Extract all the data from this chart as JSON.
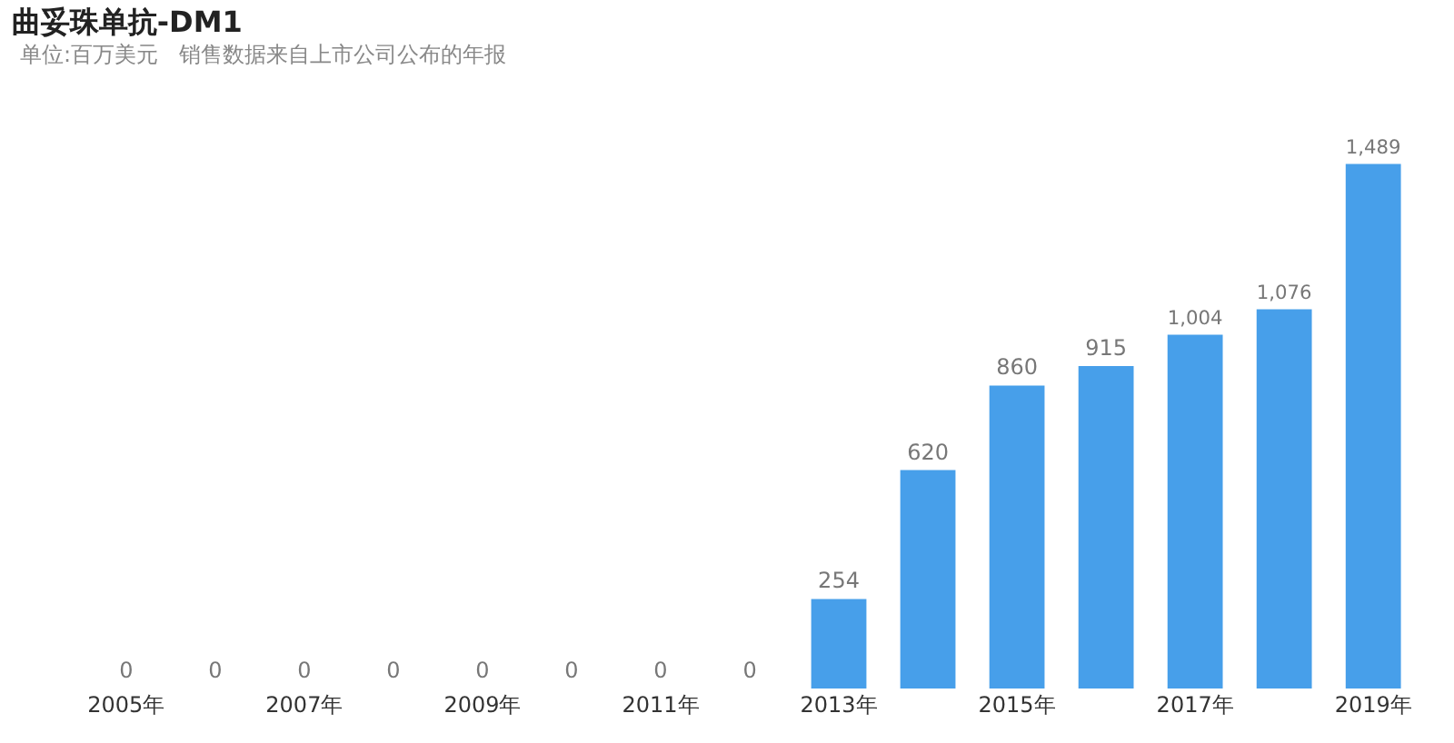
{
  "chart_data": {
    "type": "bar",
    "title": "曲妥珠单抗-DM1",
    "subtitle": "单位:百万美元   销售数据来自上市公司公布的年报",
    "categories": [
      "2005年",
      null,
      "2007年",
      null,
      "2009年",
      null,
      "2011年",
      null,
      "2013年",
      null,
      "2015年",
      null,
      "2017年",
      null,
      "2019年"
    ],
    "values": [
      0,
      0,
      0,
      0,
      0,
      0,
      0,
      0,
      254,
      620,
      860,
      915,
      1004,
      1076,
      1489
    ],
    "value_labels": [
      "0",
      "0",
      "0",
      "0",
      "0",
      "0",
      "0",
      "0",
      "254",
      "620",
      "860",
      "915",
      "1,004",
      "1,076",
      "1,489"
    ],
    "color": "#479fea"
  }
}
